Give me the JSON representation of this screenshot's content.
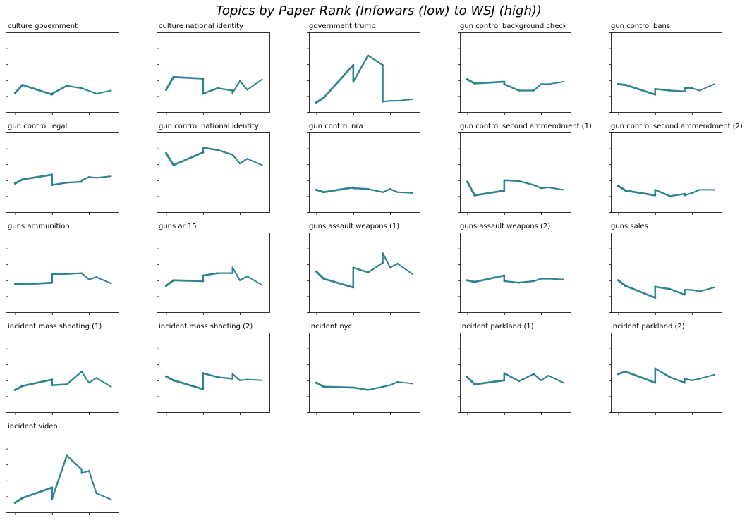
{
  "title": "Topics by Paper Rank (Infowars (low) to WSJ (high))",
  "colors": {
    "line": "#1f7a8c",
    "axis": "#000000",
    "background": "#ffffff"
  },
  "chart_data": {
    "type": "line",
    "grid": false,
    "title": "Topics by Paper Rank (Infowars (low) to WSJ (high))",
    "xlabel": "",
    "ylabel": "",
    "xlim": [
      -1,
      14
    ],
    "ylim": [
      0,
      10
    ],
    "tick_labels": "hidden",
    "x_ticks": [
      0,
      5,
      10
    ],
    "y_ticks": [
      0,
      2,
      4,
      6,
      8,
      10
    ],
    "panels": [
      {
        "title": "culture government",
        "x": [
          0,
          1,
          5,
          5,
          7,
          9,
          11,
          13
        ],
        "y": [
          2.4,
          3.4,
          2.2,
          2.3,
          3.3,
          3.0,
          2.3,
          2.7
        ]
      },
      {
        "title": "culture national identity",
        "x": [
          0,
          1,
          5,
          5,
          7,
          9,
          9,
          10,
          11,
          13
        ],
        "y": [
          2.8,
          4.4,
          4.2,
          2.3,
          3.0,
          2.7,
          2.4,
          3.9,
          2.8,
          4.1
        ]
      },
      {
        "title": "government trump",
        "x": [
          0,
          1,
          5,
          5,
          7,
          9,
          9,
          10,
          11,
          13
        ],
        "y": [
          1.2,
          1.8,
          5.9,
          3.8,
          7.1,
          5.9,
          1.3,
          1.4,
          1.4,
          1.6
        ]
      },
      {
        "title": "gun control background check",
        "x": [
          0,
          1,
          5,
          5,
          7,
          9,
          10,
          11,
          13
        ],
        "y": [
          4.1,
          3.6,
          3.8,
          3.5,
          2.7,
          2.7,
          3.5,
          3.5,
          3.8
        ]
      },
      {
        "title": "gun control bans",
        "x": [
          0,
          1,
          5,
          5,
          7,
          9,
          9,
          10,
          11,
          13
        ],
        "y": [
          3.5,
          3.4,
          2.2,
          2.9,
          2.7,
          2.6,
          3.0,
          3.0,
          2.7,
          3.5
        ]
      },
      {
        "title": "gun control legal",
        "x": [
          0,
          1,
          5,
          5,
          7,
          9,
          9,
          10,
          11,
          13
        ],
        "y": [
          3.6,
          4.1,
          4.7,
          3.4,
          3.7,
          3.8,
          4.0,
          4.4,
          4.3,
          4.5
        ]
      },
      {
        "title": "gun control national identity",
        "x": [
          0,
          1,
          5,
          5,
          7,
          9,
          10,
          11,
          13
        ],
        "y": [
          7.4,
          5.9,
          7.5,
          8.1,
          7.8,
          7.2,
          6.1,
          6.7,
          5.9
        ]
      },
      {
        "title": "gun control nra",
        "x": [
          0,
          1,
          5,
          5,
          7,
          9,
          10,
          11,
          13
        ],
        "y": [
          2.8,
          2.5,
          3.1,
          3.0,
          2.9,
          2.5,
          2.9,
          2.5,
          2.4
        ]
      },
      {
        "title": "gun control second ammendment (1)",
        "x": [
          0,
          1,
          5,
          5,
          7,
          9,
          10,
          11,
          13
        ],
        "y": [
          3.8,
          2.1,
          2.7,
          4.0,
          3.9,
          3.4,
          3.0,
          3.1,
          2.8
        ]
      },
      {
        "title": "gun control second ammendment (2)",
        "x": [
          0,
          1,
          5,
          5,
          7,
          9,
          9,
          10,
          11,
          13
        ],
        "y": [
          3.3,
          2.7,
          2.1,
          2.8,
          2.0,
          2.3,
          2.1,
          2.4,
          2.8,
          2.8
        ]
      },
      {
        "title": "guns ammunition",
        "x": [
          0,
          1,
          5,
          5,
          7,
          9,
          10,
          11,
          13
        ],
        "y": [
          3.5,
          3.5,
          3.7,
          4.8,
          4.8,
          4.9,
          4.1,
          4.4,
          3.6
        ]
      },
      {
        "title": "guns ar 15",
        "x": [
          0,
          1,
          5,
          5,
          7,
          9,
          9,
          10,
          11,
          13
        ],
        "y": [
          3.3,
          4.0,
          3.9,
          4.6,
          4.9,
          4.9,
          5.6,
          4.0,
          4.5,
          3.4
        ]
      },
      {
        "title": "guns assault weapons (1)",
        "x": [
          0,
          1,
          5,
          5,
          7,
          9,
          9,
          10,
          11,
          13
        ],
        "y": [
          5.1,
          4.2,
          3.1,
          5.6,
          5.0,
          6.2,
          7.4,
          5.6,
          6.1,
          4.8
        ]
      },
      {
        "title": "guns assault weapons (2)",
        "x": [
          0,
          1,
          5,
          5,
          7,
          9,
          10,
          11,
          13
        ],
        "y": [
          4.0,
          3.8,
          4.6,
          3.9,
          3.7,
          3.9,
          4.2,
          4.2,
          4.1
        ]
      },
      {
        "title": "guns sales",
        "x": [
          0,
          1,
          5,
          5,
          7,
          9,
          9,
          10,
          11,
          13
        ],
        "y": [
          4.0,
          3.3,
          1.8,
          3.2,
          2.9,
          2.2,
          2.8,
          2.8,
          2.6,
          3.1
        ]
      },
      {
        "title": "incident mass shooting (1)",
        "x": [
          0,
          1,
          5,
          5,
          7,
          9,
          10,
          11,
          13
        ],
        "y": [
          2.8,
          3.3,
          4.1,
          3.4,
          3.5,
          5.1,
          3.7,
          4.3,
          3.2
        ]
      },
      {
        "title": "incident mass shooting (2)",
        "x": [
          0,
          1,
          5,
          5,
          7,
          9,
          9,
          10,
          11,
          13
        ],
        "y": [
          4.5,
          4.0,
          2.9,
          4.9,
          4.4,
          4.2,
          4.8,
          4.0,
          4.1,
          4.0
        ]
      },
      {
        "title": "incident nyc",
        "x": [
          0,
          1,
          5,
          7,
          9,
          10,
          11,
          13
        ],
        "y": [
          3.7,
          3.2,
          3.1,
          2.8,
          3.2,
          3.4,
          3.8,
          3.6
        ]
      },
      {
        "title": "incident parkland (1)",
        "x": [
          0,
          1,
          5,
          5,
          7,
          9,
          10,
          11,
          13
        ],
        "y": [
          4.4,
          3.5,
          4.0,
          4.9,
          3.9,
          4.8,
          4.0,
          4.6,
          3.7
        ]
      },
      {
        "title": "incident parkland (2)",
        "x": [
          0,
          1,
          5,
          5,
          7,
          9,
          9,
          10,
          11,
          13
        ],
        "y": [
          4.8,
          5.1,
          3.7,
          5.5,
          4.4,
          3.7,
          4.2,
          4.0,
          4.2,
          4.7
        ]
      },
      {
        "title": "incident video",
        "x": [
          0,
          1,
          5,
          5,
          7,
          9,
          9,
          10,
          11,
          13
        ],
        "y": [
          1.2,
          1.8,
          3.1,
          1.7,
          7.1,
          5.4,
          4.9,
          5.2,
          2.4,
          1.6
        ]
      }
    ]
  }
}
